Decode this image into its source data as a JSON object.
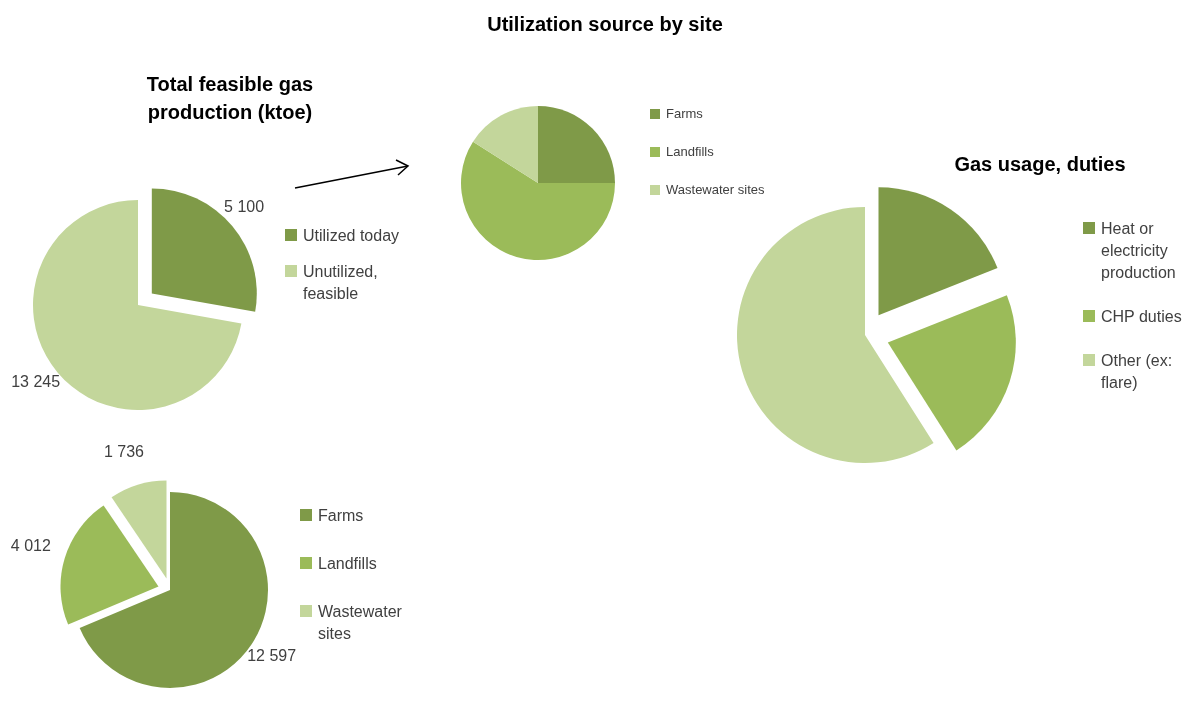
{
  "chart_data": [
    {
      "type": "pie",
      "title": "Total feasible gas production (ktoe)",
      "categories": [
        "Utilized today",
        "Unutilized, feasible"
      ],
      "values": [
        5100,
        13245
      ],
      "value_labels": [
        "5 100",
        "13 245"
      ],
      "colors": [
        "#7f9a48",
        "#c3d69b"
      ],
      "legend": "right"
    },
    {
      "type": "pie",
      "title": "Utilization source by site",
      "categories": [
        "Farms",
        "Landfills",
        "Wastewater sites"
      ],
      "values": [
        25,
        59,
        16
      ],
      "colors": [
        "#7f9a48",
        "#9bbb59",
        "#c3d69b"
      ],
      "legend": "right"
    },
    {
      "type": "pie",
      "title": "Gas usage, duties",
      "categories": [
        "Heat or electricity production",
        "CHP duties",
        "Other (ex: flare)"
      ],
      "values": [
        19,
        22,
        59
      ],
      "colors": [
        "#7f9a48",
        "#9bbb59",
        "#c3d69b"
      ],
      "legend": "right"
    },
    {
      "type": "pie",
      "categories": [
        "Farms",
        "Landfills",
        "Wastewater sites"
      ],
      "values": [
        12597,
        4012,
        1736
      ],
      "value_labels": [
        "12 597",
        "4 012",
        "1 736"
      ],
      "colors": [
        "#7f9a48",
        "#9bbb59",
        "#c3d69b"
      ],
      "legend": "right"
    }
  ]
}
